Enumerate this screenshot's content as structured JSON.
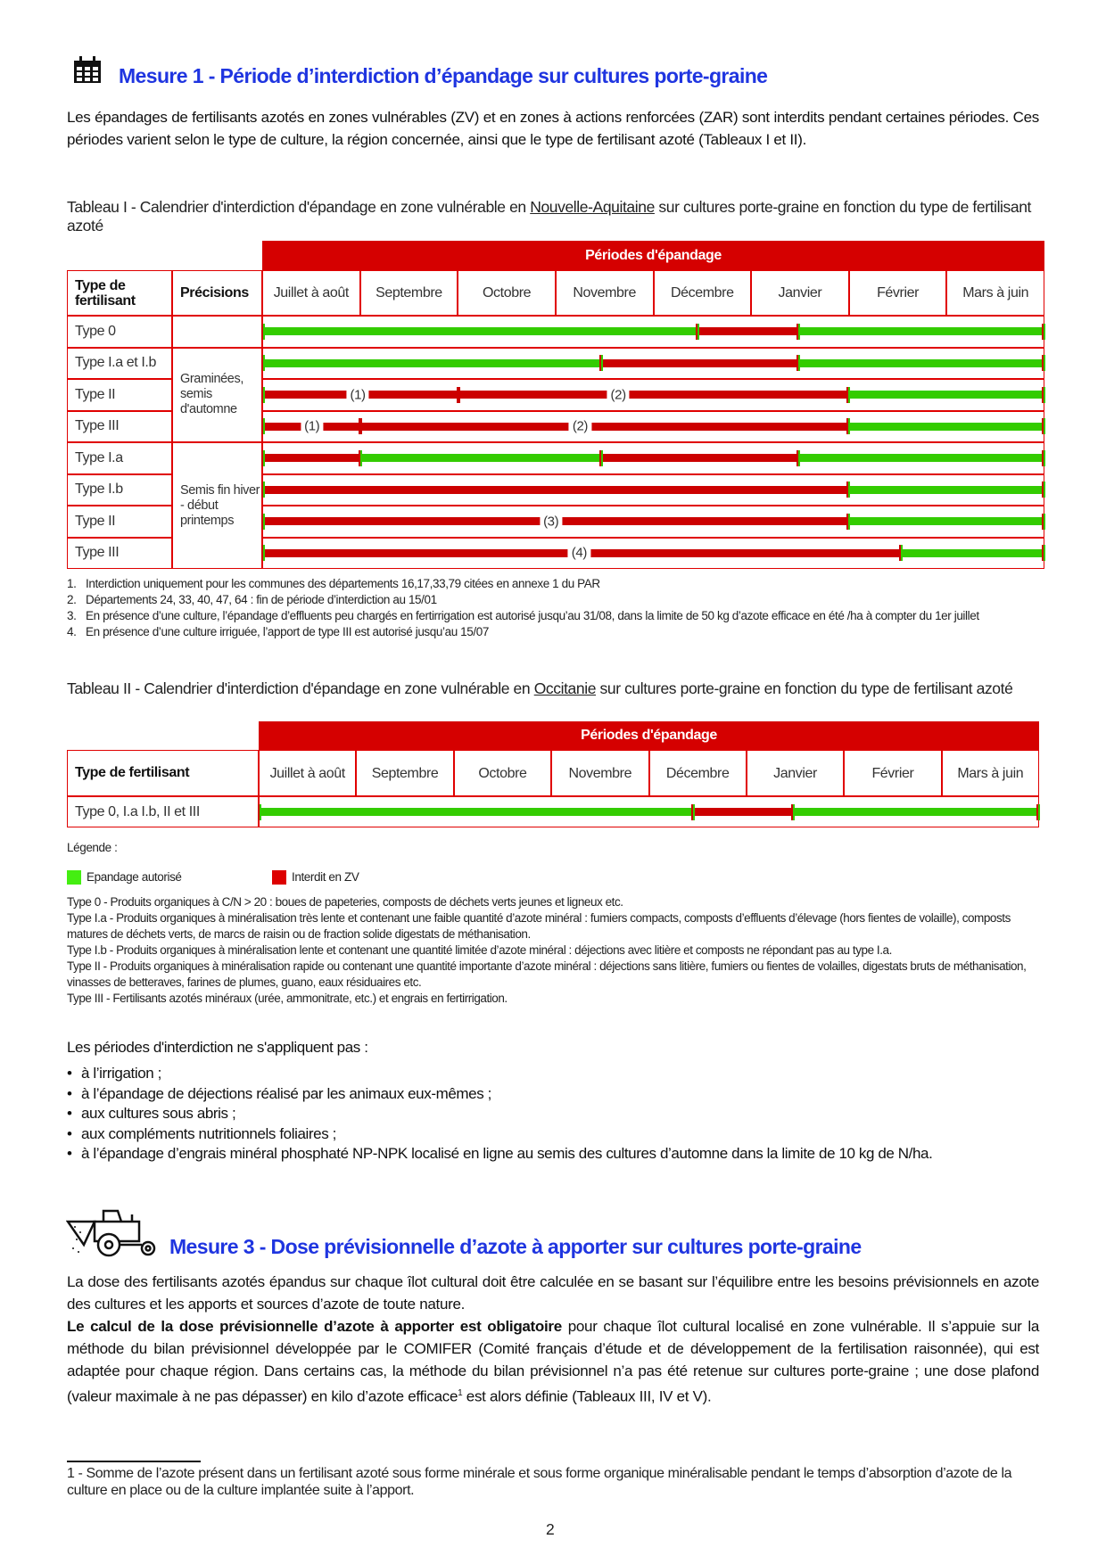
{
  "colors": {
    "authorized": "#33cc00",
    "forbidden": "#cc0000",
    "table_border": "#e00000",
    "title": "#1f35e0"
  },
  "mesure1": {
    "icon": "calendar-icon",
    "title": "Mesure 1 - Période d’interdiction d’épandage sur cultures porte-graine",
    "intro": "Les épandages de fertilisants azotés en zones vulnérables (ZV) et en zones à actions renforcées (ZAR) sont interdits pendant certaines périodes. Ces périodes varient selon le type de culture, la région concernée, ainsi que le type de fertilisant azoté (Tableaux I et II)."
  },
  "table1": {
    "caption_before": "Tableau I - Calendrier d'interdiction d'épandage en zone vulnérable en ",
    "caption_region": "Nouvelle-Aquitaine",
    "caption_after": " sur cultures porte-graine en fonction du type de fertilisant azoté",
    "periods_header": "Périodes d'épandage",
    "col_type": "Type de fertilisant",
    "col_precisions": "Précisions",
    "months": [
      "Juillet à août",
      "Septembre",
      "Octobre",
      "Novembre",
      "Décembre",
      "Janvier",
      "Février",
      "Mars à juin"
    ],
    "precision_groups": [
      "Graminées, semis d'automne",
      "Semis fin hiver - début printemps"
    ],
    "rows": [
      {
        "type": "Type 0",
        "group": null,
        "segments": [
          [
            "A",
            "01/07",
            "14/12"
          ],
          [
            "F",
            "15/12",
            "15/01"
          ],
          [
            "A",
            "16/01",
            "30/06"
          ]
        ],
        "markers": [],
        "labels": []
      },
      {
        "type": "Type I.a et I.b",
        "group": 0,
        "segments": [
          [
            "A",
            "01/07",
            "14/11"
          ],
          [
            "F",
            "15/11",
            "15/01"
          ],
          [
            "A",
            "16/01",
            "30/06"
          ]
        ],
        "markers": [],
        "labels": []
      },
      {
        "type": "Type II",
        "group": 0,
        "segments": [
          [
            "F",
            "01/07",
            "31/01"
          ],
          [
            "A",
            "01/02",
            "30/06"
          ]
        ],
        "markers": [
          "01/10"
        ],
        "labels": [
          "(1)",
          "(2)"
        ]
      },
      {
        "type": "Type III",
        "group": 0,
        "segments": [
          [
            "F",
            "01/07",
            "31/01"
          ],
          [
            "A",
            "01/02",
            "30/06"
          ]
        ],
        "markers": [
          "01/09"
        ],
        "labels": [
          "(1)",
          "(2)"
        ]
      },
      {
        "type": "Type I.a",
        "group": 1,
        "segments": [
          [
            "F",
            "01/07",
            "31/08"
          ],
          [
            "A",
            "01/09",
            "14/11"
          ],
          [
            "F",
            "15/11",
            "15/01"
          ],
          [
            "A",
            "16/01",
            "30/06"
          ]
        ],
        "markers": [],
        "labels": []
      },
      {
        "type": "Type I.b",
        "group": 1,
        "segments": [
          [
            "F",
            "01/07",
            "31/01"
          ],
          [
            "A",
            "01/02",
            "30/06"
          ]
        ],
        "markers": [],
        "labels": []
      },
      {
        "type": "Type II",
        "group": 1,
        "segments": [
          [
            "F",
            "01/07",
            "31/01"
          ],
          [
            "A",
            "01/02",
            "30/06"
          ]
        ],
        "markers": [],
        "labels": [
          "(3)"
        ]
      },
      {
        "type": "Type III",
        "group": 1,
        "segments": [
          [
            "F",
            "01/07",
            "15/02"
          ],
          [
            "A",
            "16/02",
            "30/06"
          ]
        ],
        "markers": [],
        "labels": [
          "(4)"
        ]
      }
    ],
    "footnotes": [
      "Interdiction uniquement pour les communes des départements 16,17,33,79 citées en annexe 1 du PAR",
      "Départements 24, 33, 40, 47, 64 : fin de période d’interdiction au 15/01",
      "En présence d’une culture, l’épandage d’effluents peu chargés en fertirrigation est autorisé jusqu’au 31/08, dans la limite de 50 kg d’azote efficace en été /ha à compter du 1er juillet",
      "En présence d’une culture irriguée, l’apport de type III est autorisé jusqu’au 15/07"
    ]
  },
  "table2": {
    "caption_before": "Tableau II - Calendrier d'interdiction d'épandage en zone vulnérable en ",
    "caption_region": "Occitanie",
    "caption_after": " sur cultures porte-graine en fonction du type de fertilisant azoté",
    "periods_header": "Périodes d'épandage",
    "col_type": "Type de fertilisant",
    "months": [
      "Juillet à août",
      "Septembre",
      "Octobre",
      "Novembre",
      "Décembre",
      "Janvier",
      "Février",
      "Mars à juin"
    ],
    "rows": [
      {
        "type": "Type 0, I.a I.b, II et III",
        "segments": [
          [
            "A",
            "01/07",
            "14/12"
          ],
          [
            "F",
            "15/12",
            "15/01"
          ],
          [
            "A",
            "16/01",
            "30/06"
          ]
        ]
      }
    ]
  },
  "legend": {
    "title": "Légende :",
    "authorized": "Epandage autorisé",
    "forbidden": "Interdit en ZV",
    "types": [
      "Type 0 - Produits organiques à C/N > 20 : boues de papeteries, composts de déchets verts jeunes et ligneux etc.",
      "Type I.a - Produits organiques à minéralisation très lente et contenant une faible quantité d’azote minéral : fumiers compacts, composts d’effluents d’élevage (hors fientes de volaille), composts matures de déchets verts, de marcs de raisin ou de fraction solide digestats de méthanisation.",
      "Type I.b - Produits organiques à minéralisation lente et contenant une quantité limitée d’azote minéral : déjections avec litière et composts ne répondant pas au type I.a.",
      "Type II - Produits organiques à minéralisation rapide ou contenant une quantité importante d’azote minéral : déjections sans litière, fumiers ou fientes de volailles, digestats bruts de méthanisation, vinasses de betteraves, farines de plumes, guano, eaux résiduaires etc.",
      "Type III - Fertilisants azotés minéraux (urée, ammonitrate, etc.) et engrais en fertirrigation."
    ]
  },
  "exceptions": {
    "title": "Les périodes d'interdiction ne s'appliquent pas :",
    "items": [
      "à l’irrigation ;",
      "à l’épandage de déjections réalisé par les animaux eux-mêmes ;",
      "aux cultures sous abris ;",
      "aux compléments nutritionnels foliaires ;",
      "à l’épandage d’engrais minéral phosphaté NP-NPK localisé en ligne au semis des cultures d’automne dans la limite de 10 kg de N/ha."
    ]
  },
  "mesure3": {
    "icon": "tractor-spreader-icon",
    "title": "Mesure 3 - Dose prévisionnelle d’azote à apporter sur cultures porte-graine",
    "p1": "La dose des fertilisants azotés épandus sur chaque îlot cultural doit être calculée en se basant sur l’équilibre entre les besoins prévisionnels en azote des cultures et les apports et sources d’azote de toute nature.",
    "p2_bold": "Le calcul de la dose prévisionnelle d’azote à apporter est obligatoire",
    "p2_a": " pour chaque îlot cultural localisé en zone vulnérable. Il s’appuie sur la méthode du bilan prévisionnel développée par le COMIFER (Comité français d’étude et de développement de la fertilisation raisonnée), qui est adaptée pour chaque région. Dans certains cas, la méthode du bilan prévisionnel n’a pas été retenue sur cultures porte-graine ; une dose plafond (valeur maximale à ne pas dépasser) en kilo d’azote efficace",
    "p2_sup": "1",
    "p2_b": " est alors définie (Tableaux III, IV et V)."
  },
  "footnote": "1 - Somme de l’azote présent dans un fertilisant azoté sous forme minérale et sous forme organique minéralisable pendant le temps d’absorption d’azote de la culture en place ou de la culture implantée suite à l’apport.",
  "page_number": "2"
}
